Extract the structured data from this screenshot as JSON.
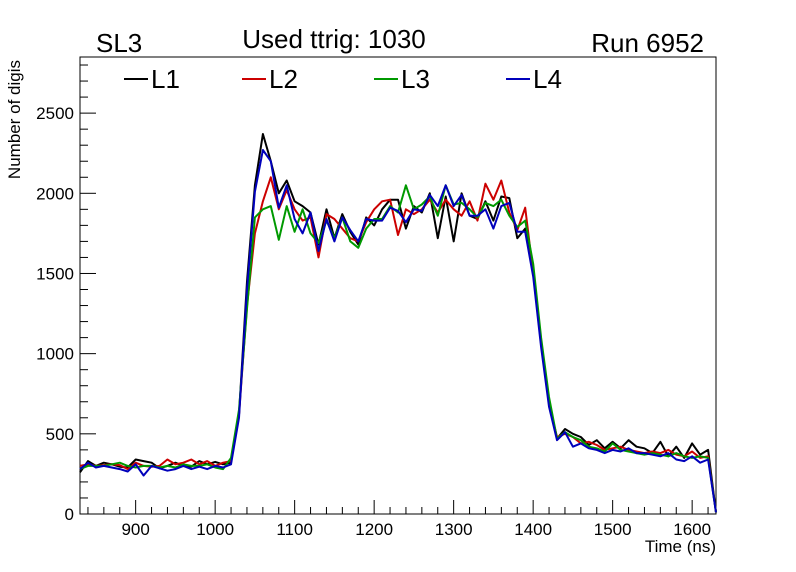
{
  "chart_data": {
    "type": "line",
    "title": "Used ttrig: 1030",
    "corner_left": "SL3",
    "corner_right": "Run 6952",
    "xlabel": "Time (ns)",
    "ylabel": "Number of digis",
    "xlim": [
      830,
      1630
    ],
    "ylim": [
      0,
      2850
    ],
    "x_ticks": [
      900,
      1000,
      1100,
      1200,
      1300,
      1400,
      1500,
      1600
    ],
    "y_ticks": [
      0,
      500,
      1000,
      1500,
      2000,
      2500
    ],
    "legend_placement": "top, horizontal",
    "grid": false,
    "x": [
      830,
      840,
      850,
      860,
      870,
      880,
      890,
      900,
      910,
      920,
      930,
      940,
      950,
      960,
      970,
      980,
      990,
      1000,
      1010,
      1020,
      1030,
      1040,
      1050,
      1060,
      1070,
      1080,
      1090,
      1100,
      1110,
      1120,
      1130,
      1140,
      1150,
      1160,
      1170,
      1180,
      1190,
      1200,
      1210,
      1220,
      1230,
      1240,
      1250,
      1260,
      1270,
      1280,
      1290,
      1300,
      1310,
      1320,
      1330,
      1340,
      1350,
      1360,
      1370,
      1380,
      1390,
      1400,
      1410,
      1420,
      1430,
      1440,
      1450,
      1460,
      1470,
      1480,
      1490,
      1500,
      1510,
      1520,
      1530,
      1540,
      1550,
      1560,
      1570,
      1580,
      1590,
      1600,
      1610,
      1620,
      1630
    ],
    "series": [
      {
        "name": "L1",
        "color": "#000000",
        "values": [
          260,
          330,
          300,
          320,
          310,
          295,
          290,
          340,
          330,
          320,
          285,
          300,
          320,
          300,
          295,
          330,
          310,
          325,
          310,
          320,
          620,
          1450,
          2050,
          2370,
          2200,
          2000,
          2080,
          1950,
          1920,
          1880,
          1680,
          1900,
          1720,
          1870,
          1760,
          1680,
          1850,
          1800,
          1900,
          1960,
          1960,
          1780,
          1920,
          1880,
          2000,
          1720,
          1980,
          1700,
          2000,
          1860,
          1840,
          1950,
          1830,
          1980,
          1970,
          1720,
          1780,
          1500,
          1080,
          700,
          470,
          530,
          500,
          480,
          430,
          460,
          410,
          450,
          410,
          460,
          420,
          410,
          380,
          450,
          360,
          420,
          350,
          440,
          370,
          400,
          10
        ]
      },
      {
        "name": "L2",
        "color": "#cc0000",
        "values": [
          300,
          310,
          300,
          305,
          310,
          305,
          280,
          320,
          300,
          295,
          300,
          340,
          310,
          320,
          340,
          310,
          330,
          300,
          320,
          330,
          620,
          1300,
          1750,
          1950,
          2100,
          1900,
          2020,
          1900,
          1830,
          1850,
          1600,
          1870,
          1840,
          1780,
          1720,
          1700,
          1820,
          1900,
          1950,
          1960,
          1740,
          1900,
          1870,
          1900,
          1960,
          1880,
          1960,
          1900,
          1860,
          1950,
          1830,
          2060,
          1960,
          2080,
          1880,
          1770,
          1910,
          1500,
          1060,
          690,
          480,
          500,
          480,
          440,
          450,
          430,
          400,
          410,
          420,
          400,
          390,
          380,
          390,
          380,
          400,
          370,
          360,
          390,
          350,
          360,
          10
        ]
      },
      {
        "name": "L3",
        "color": "#009900",
        "values": [
          280,
          300,
          300,
          300,
          310,
          320,
          300,
          290,
          300,
          300,
          290,
          300,
          290,
          310,
          300,
          300,
          310,
          290,
          280,
          350,
          650,
          1280,
          1850,
          1900,
          1920,
          1710,
          1920,
          1760,
          1900,
          1750,
          1690,
          1830,
          1720,
          1850,
          1700,
          1660,
          1780,
          1840,
          1840,
          1920,
          1880,
          2050,
          1900,
          1930,
          1980,
          1860,
          2050,
          1930,
          1940,
          1900,
          1850,
          1940,
          1920,
          1960,
          1860,
          1790,
          1830,
          1560,
          1100,
          730,
          470,
          510,
          480,
          460,
          420,
          410,
          390,
          440,
          400,
          390,
          380,
          370,
          380,
          370,
          360,
          380,
          360,
          350,
          360,
          350,
          10
        ]
      },
      {
        "name": "L4",
        "color": "#0000bb",
        "values": [
          280,
          320,
          290,
          300,
          290,
          280,
          265,
          310,
          240,
          300,
          285,
          270,
          280,
          300,
          280,
          295,
          280,
          300,
          290,
          310,
          600,
          1400,
          2010,
          2270,
          2200,
          1910,
          2050,
          1840,
          1750,
          1880,
          1640,
          1840,
          1700,
          1850,
          1770,
          1700,
          1840,
          1830,
          1830,
          1910,
          1890,
          1820,
          1900,
          1890,
          1990,
          1920,
          2050,
          1920,
          1990,
          1860,
          1860,
          1900,
          1780,
          1920,
          1940,
          1760,
          1760,
          1480,
          1040,
          670,
          460,
          510,
          420,
          440,
          410,
          400,
          380,
          400,
          390,
          410,
          380,
          380,
          370,
          360,
          380,
          340,
          330,
          360,
          320,
          340,
          10
        ]
      }
    ]
  }
}
